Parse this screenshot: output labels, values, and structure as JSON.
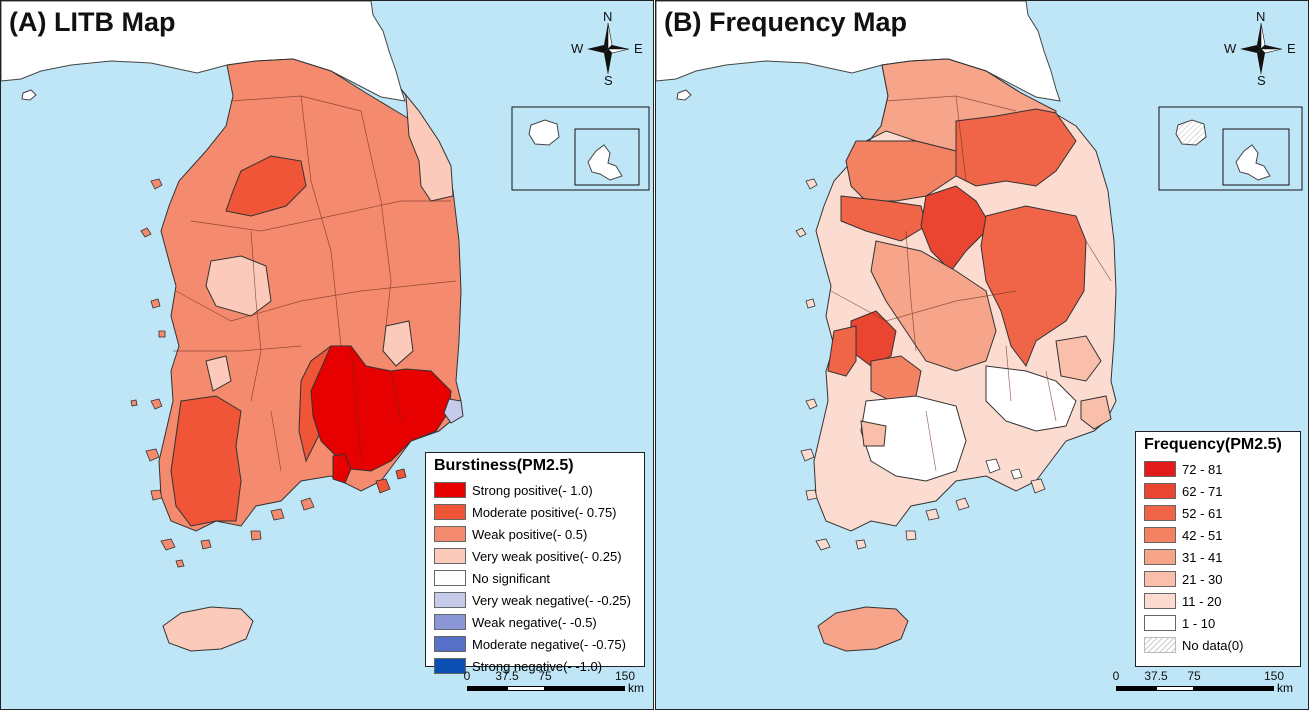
{
  "panel_a": {
    "title": "(A) LITB Map",
    "legend": {
      "title": "Burstiness(PM2.5)",
      "items": [
        {
          "label": "Strong positive(- 1.0)",
          "color": "#e60000"
        },
        {
          "label": "Moderate positive(- 0.75)",
          "color": "#f05538"
        },
        {
          "label": "Weak positive(- 0.5)",
          "color": "#f48a6e"
        },
        {
          "label": "Very weak positive(- 0.25)",
          "color": "#fbcabb"
        },
        {
          "label": "No significant",
          "color": "#ffffff"
        },
        {
          "label": "Very weak negative(- -0.25)",
          "color": "#c6cbeb"
        },
        {
          "label": "Weak negative(- -0.5)",
          "color": "#8b97d6"
        },
        {
          "label": "Moderate negative(- -0.75)",
          "color": "#5570c6"
        },
        {
          "label": "Strong negative(- -1.0)",
          "color": "#0b4fb3"
        }
      ]
    }
  },
  "panel_b": {
    "title": "(B) Frequency Map",
    "legend": {
      "title": "Frequency(PM2.5)",
      "items": [
        {
          "label": "72 - 81",
          "color": "#e21a1a"
        },
        {
          "label": "62 - 71",
          "color": "#ea4530"
        },
        {
          "label": "52 - 61",
          "color": "#f06548"
        },
        {
          "label": "42 - 51",
          "color": "#f38262"
        },
        {
          "label": "31 - 41",
          "color": "#f6a48a"
        },
        {
          "label": "21 - 30",
          "color": "#f9bfab"
        },
        {
          "label": "11 - 20",
          "color": "#fcdcd0"
        },
        {
          "label": "1 - 10",
          "color": "#ffffff"
        },
        {
          "label": "No data(0)",
          "color": "hatch"
        }
      ]
    }
  },
  "compass": {
    "n": "N",
    "s": "S",
    "e": "E",
    "w": "W"
  },
  "scale": {
    "ticks": [
      "0",
      "37.5",
      "75",
      "150"
    ],
    "unit": "km"
  },
  "colors": {
    "sea": "#bfe6f7",
    "land_north": "#ffffff",
    "border": "#333333"
  }
}
